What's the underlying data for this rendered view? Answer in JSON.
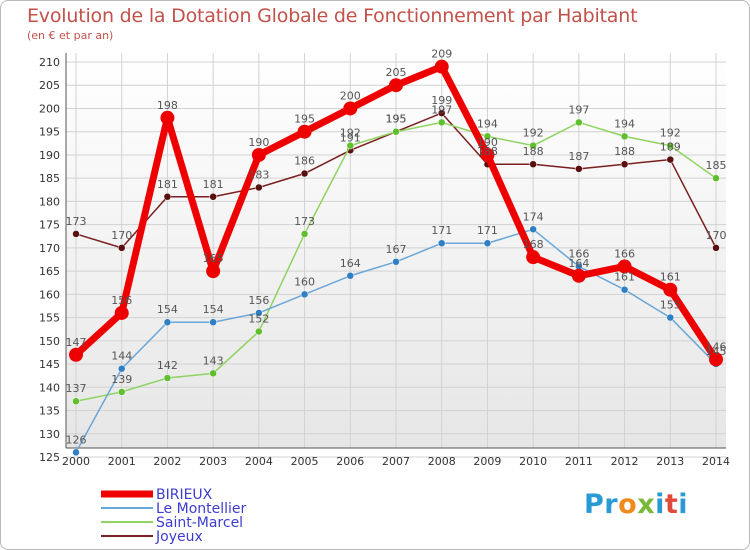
{
  "title": "Evolution de la Dotation Globale de Fonctionnement par Habitant",
  "subtitle": "(en € et par an)",
  "logo": {
    "text": "Proxiti",
    "letters": [
      "P",
      "r",
      "o",
      "x",
      "i",
      "t",
      "i"
    ],
    "colors": [
      "#2a9ad6",
      "#2a9ad6",
      "#f08a1c",
      "#7ab83a",
      "#2a9ad6",
      "#e04a3b",
      "#2a9ad6"
    ]
  },
  "chart_data": {
    "type": "line",
    "title": "Evolution de la Dotation Globale de Fonctionnement par Habitant",
    "ylabel": "(en € et par an)",
    "xlabel": "",
    "ylim": [
      125,
      210
    ],
    "yticks": [
      125,
      130,
      135,
      140,
      145,
      150,
      155,
      160,
      165,
      170,
      175,
      180,
      185,
      190,
      195,
      200,
      205,
      210
    ],
    "grid": true,
    "legend_position": "bottom-left",
    "categories": [
      "2000",
      "2001",
      "2002",
      "2003",
      "2004",
      "2005",
      "2006",
      "2007",
      "2008",
      "2009",
      "2010",
      "2011",
      "2012",
      "2013",
      "2014"
    ],
    "series": [
      {
        "name": "Joyeux",
        "color": "#7a1f1f",
        "values": [
          173,
          170,
          181,
          181,
          183,
          186,
          191,
          195,
          199,
          188,
          188,
          187,
          188,
          189,
          170
        ]
      },
      {
        "name": "Saint-Marcel",
        "color": "#8fd360",
        "values": [
          137,
          139,
          142,
          143,
          152,
          173,
          192,
          195,
          197,
          194,
          192,
          197,
          194,
          192,
          185
        ]
      },
      {
        "name": "Le Montellier",
        "color": "#6aa6d8",
        "values": [
          126,
          144,
          154,
          154,
          156,
          160,
          164,
          167,
          171,
          171,
          174,
          166,
          161,
          155,
          145
        ]
      },
      {
        "name": "BIRIEUX",
        "color": "#ee0000",
        "values": [
          147,
          156,
          198,
          165,
          190,
          195,
          200,
          205,
          209,
          190,
          168,
          164,
          166,
          161,
          146
        ]
      }
    ],
    "legend": [
      "BIRIEUX",
      "Le Montellier",
      "Saint-Marcel",
      "Joyeux"
    ]
  }
}
